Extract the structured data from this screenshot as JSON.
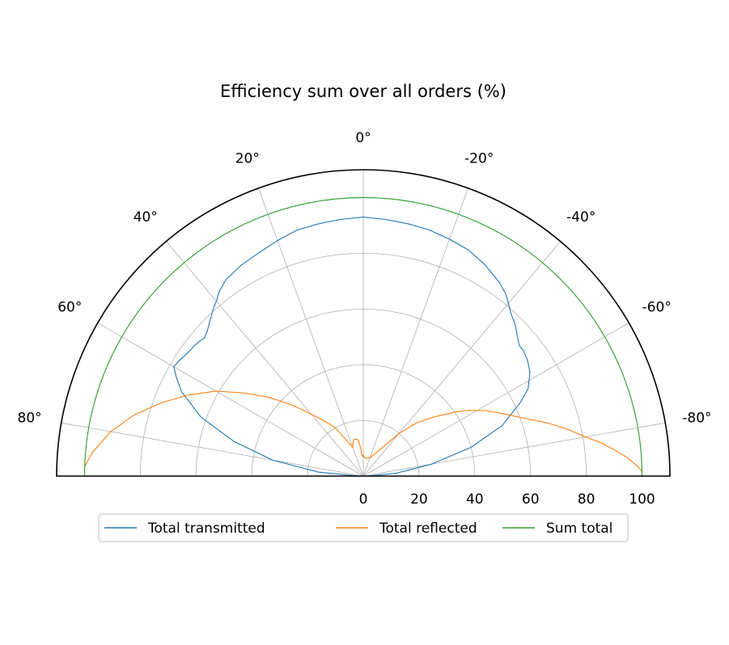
{
  "chart_data": {
    "type": "polar-line",
    "title": "Efficiency sum over all orders (%)",
    "theta_direction": "clockwise-negative",
    "theta_range": [
      -90,
      90
    ],
    "theta_ticks": [
      80,
      60,
      40,
      20,
      0,
      -20,
      -40,
      -60,
      -80
    ],
    "theta_tick_labels": [
      "80°",
      "60°",
      "40°",
      "20°",
      "0°",
      "-20°",
      "-40°",
      "-60°",
      "-80°"
    ],
    "r_range": [
      0,
      110
    ],
    "r_ticks": [
      0,
      20,
      40,
      60,
      80,
      100
    ],
    "r_tick_labels": [
      "0",
      "20",
      "40",
      "60",
      "80",
      "100"
    ],
    "grid": true,
    "legend_position": "bottom-center",
    "series": [
      {
        "name": "Total transmitted",
        "color": "#1f77b4",
        "theta": [
          -89,
          -85,
          -80,
          -75,
          -70,
          -65,
          -62,
          -58,
          -55,
          -52,
          -50,
          -48,
          -45,
          -42,
          -40,
          -38,
          -35,
          -30,
          -25,
          -20,
          -15,
          -10,
          -5,
          0,
          5,
          10,
          15,
          20,
          25,
          30,
          35,
          38,
          40,
          42,
          45,
          47,
          48,
          49,
          50,
          52,
          55,
          58,
          60,
          62,
          65,
          70,
          75,
          80,
          85,
          89
        ],
        "r": [
          1.5,
          12,
          25,
          40,
          53,
          62,
          67,
          70.5,
          72,
          73,
          73,
          74.5,
          77,
          79,
          81,
          83,
          85,
          87.5,
          89.5,
          90.5,
          91.5,
          92,
          92.5,
          93,
          92.5,
          92,
          91.5,
          90,
          88.5,
          87.5,
          86,
          84,
          82,
          80.5,
          78,
          76.5,
          76,
          75.5,
          76,
          76.5,
          77,
          78,
          78.5,
          76,
          72,
          62,
          48,
          33,
          16,
          1.5
        ]
      },
      {
        "name": "Total reflected",
        "color": "#ff7f0e",
        "theta": [
          -89,
          -88,
          -86,
          -84,
          -82,
          -80,
          -77,
          -74,
          -70,
          -66,
          -62,
          -58,
          -55,
          -52,
          -50,
          -45,
          -40,
          -30,
          -20,
          -10,
          -5,
          -2,
          0,
          2,
          4,
          5,
          8,
          10,
          15,
          18,
          20,
          25,
          30,
          35,
          40,
          45,
          50,
          55,
          60,
          65,
          70,
          75,
          80,
          85,
          88,
          89
        ],
        "r": [
          100,
          98.5,
          95,
          90.5,
          86,
          81,
          75,
          69,
          61,
          55,
          50,
          44.5,
          40,
          35.5,
          33,
          27,
          20,
          10,
          7,
          6.5,
          6.5,
          7,
          7.5,
          7,
          8,
          10,
          13,
          13.5,
          13.5,
          12,
          11,
          14,
          20,
          24,
          29,
          36,
          44,
          52,
          61,
          69,
          77,
          85,
          92,
          97.5,
          100,
          100
        ]
      },
      {
        "name": "Sum total",
        "color": "#2ca02c",
        "theta": [
          -90,
          90
        ],
        "r": [
          100,
          100
        ],
        "constant": true
      }
    ]
  }
}
